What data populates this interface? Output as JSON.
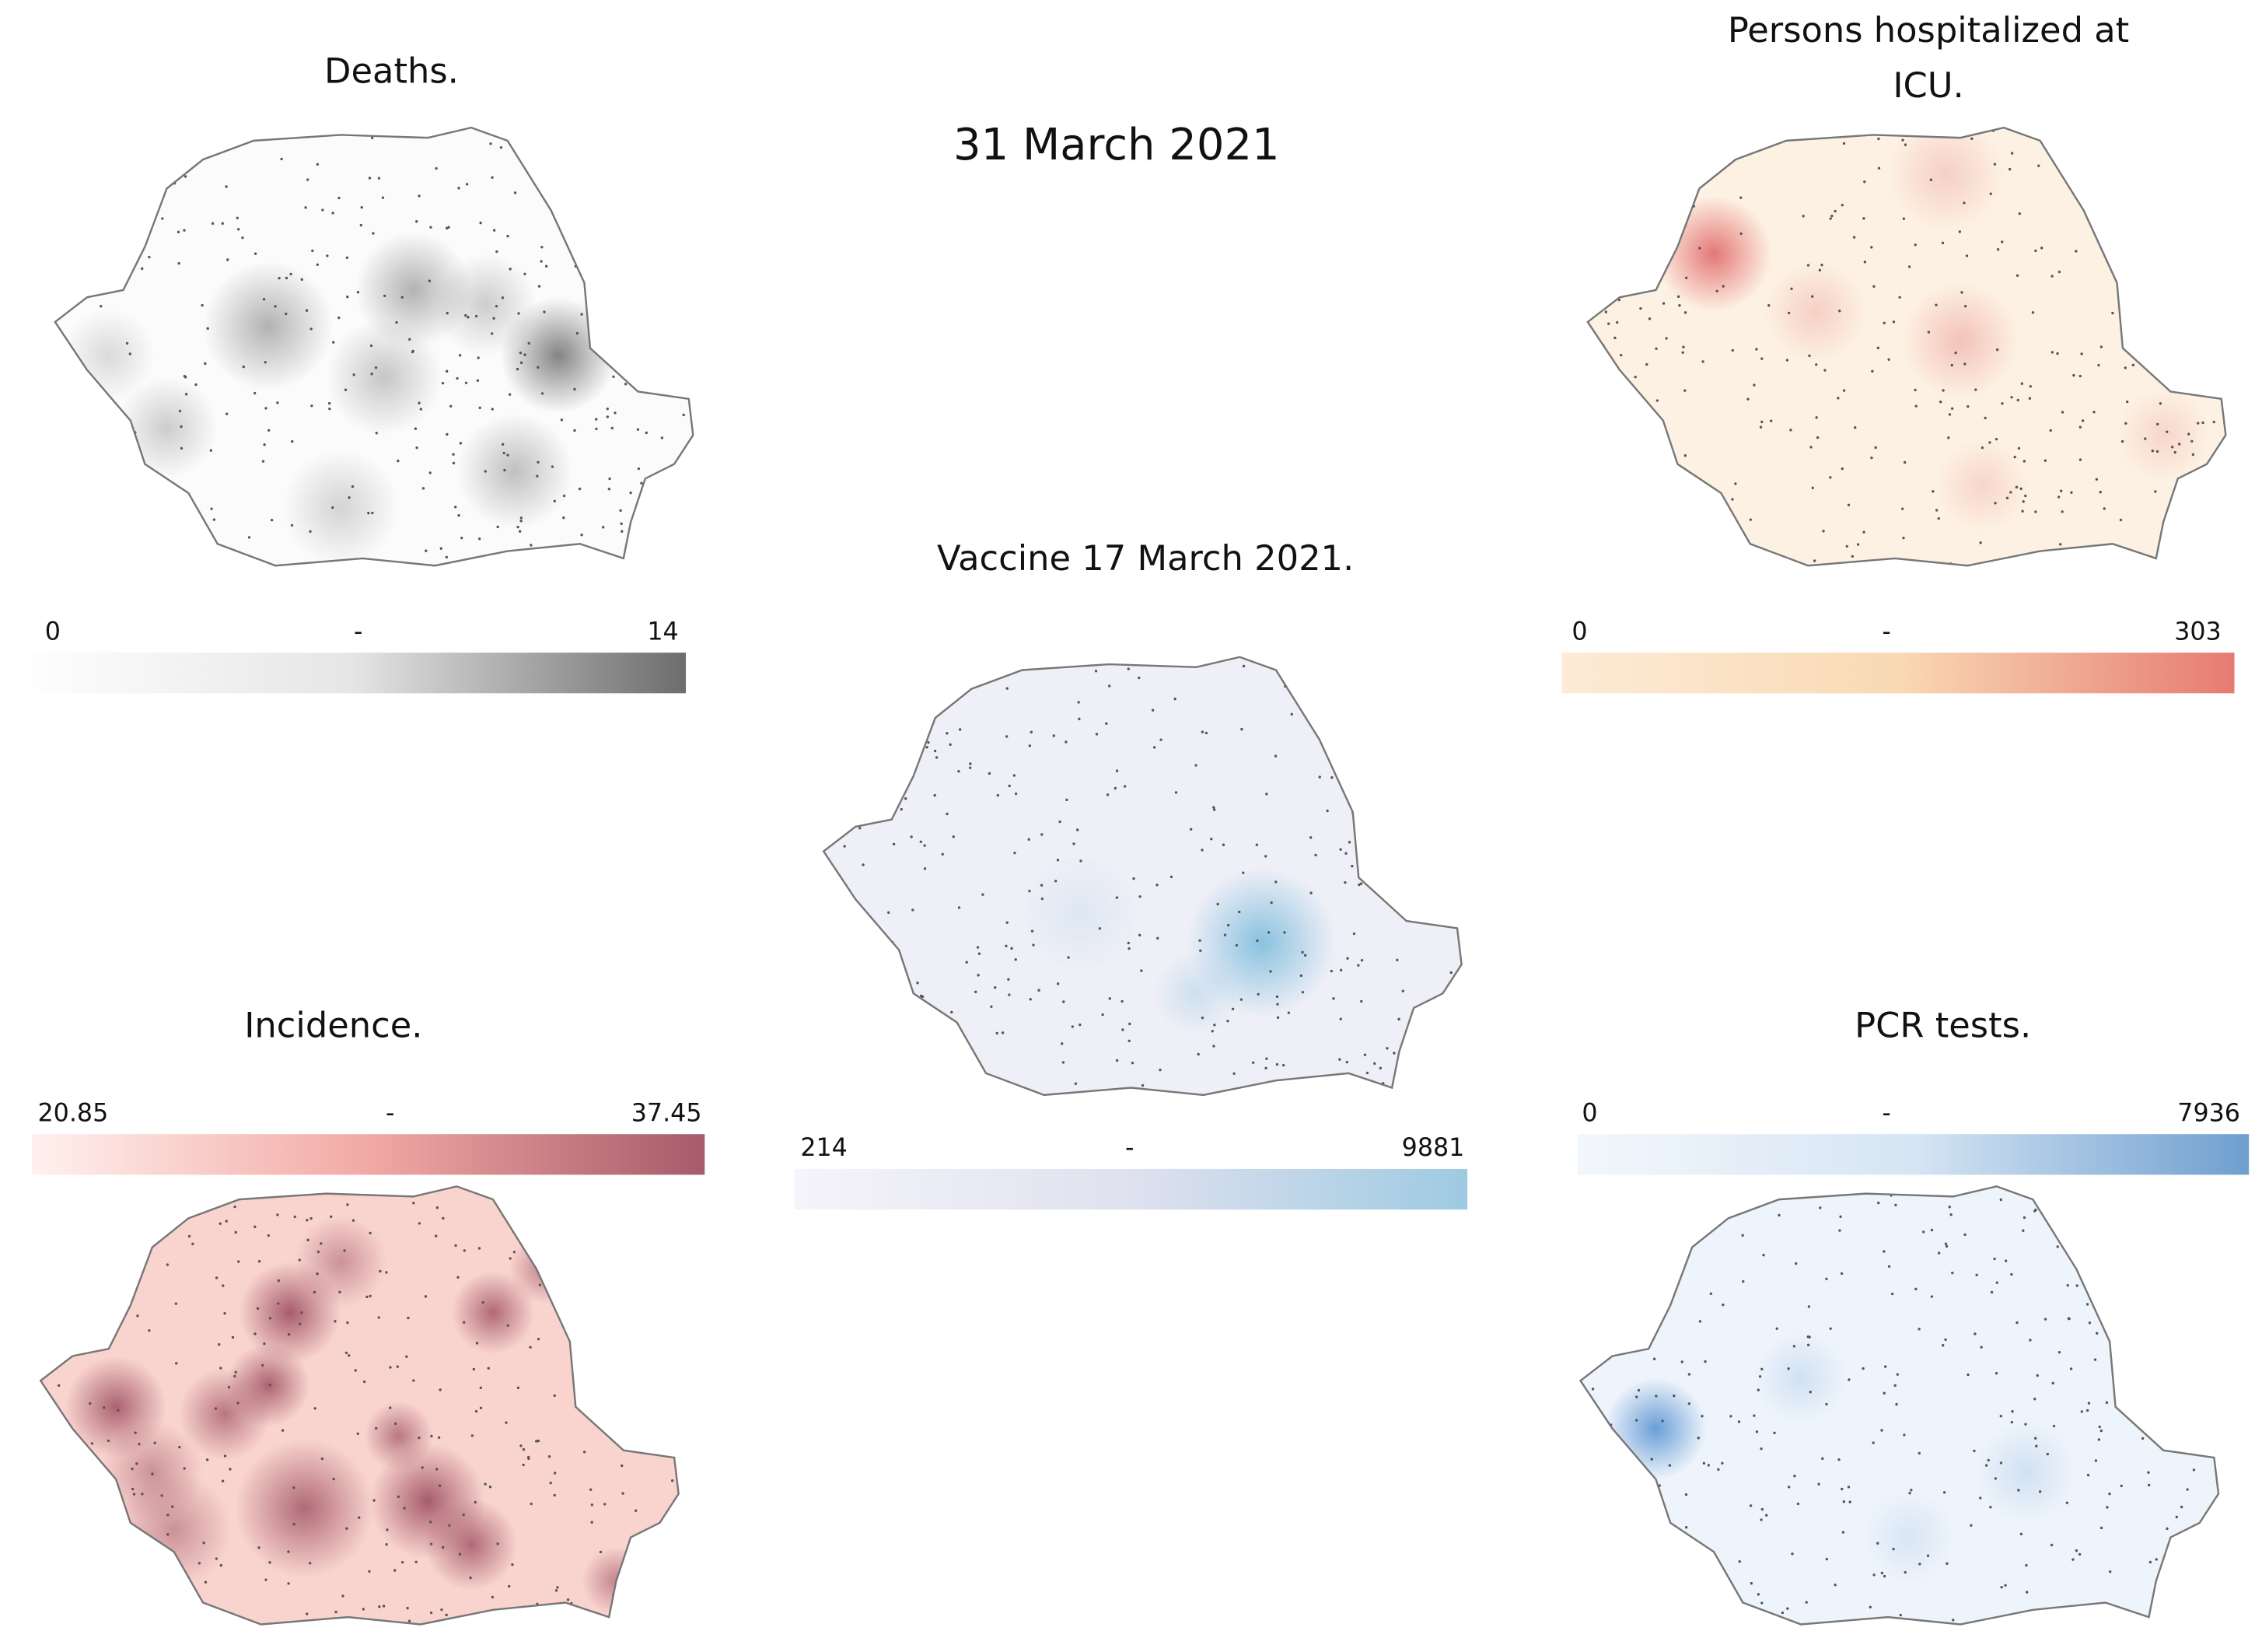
{
  "header": {
    "title": "31 March 2021"
  },
  "maps": [
    {
      "title": "Deaths.",
      "min": 0,
      "mid": "-",
      "max": 14
    },
    {
      "title": "Persons hospitalized at ICU.",
      "min": 0,
      "mid": "-",
      "max": 303
    },
    {
      "title": "Vaccine 17 March 2021.",
      "min": 214,
      "mid": "-",
      "max": 9881
    },
    {
      "title": "Incidence.",
      "min": 20.85,
      "mid": "-",
      "max": 37.45
    },
    {
      "title": "PCR tests.",
      "min": 0,
      "mid": "-",
      "max": 7936
    }
  ]
}
